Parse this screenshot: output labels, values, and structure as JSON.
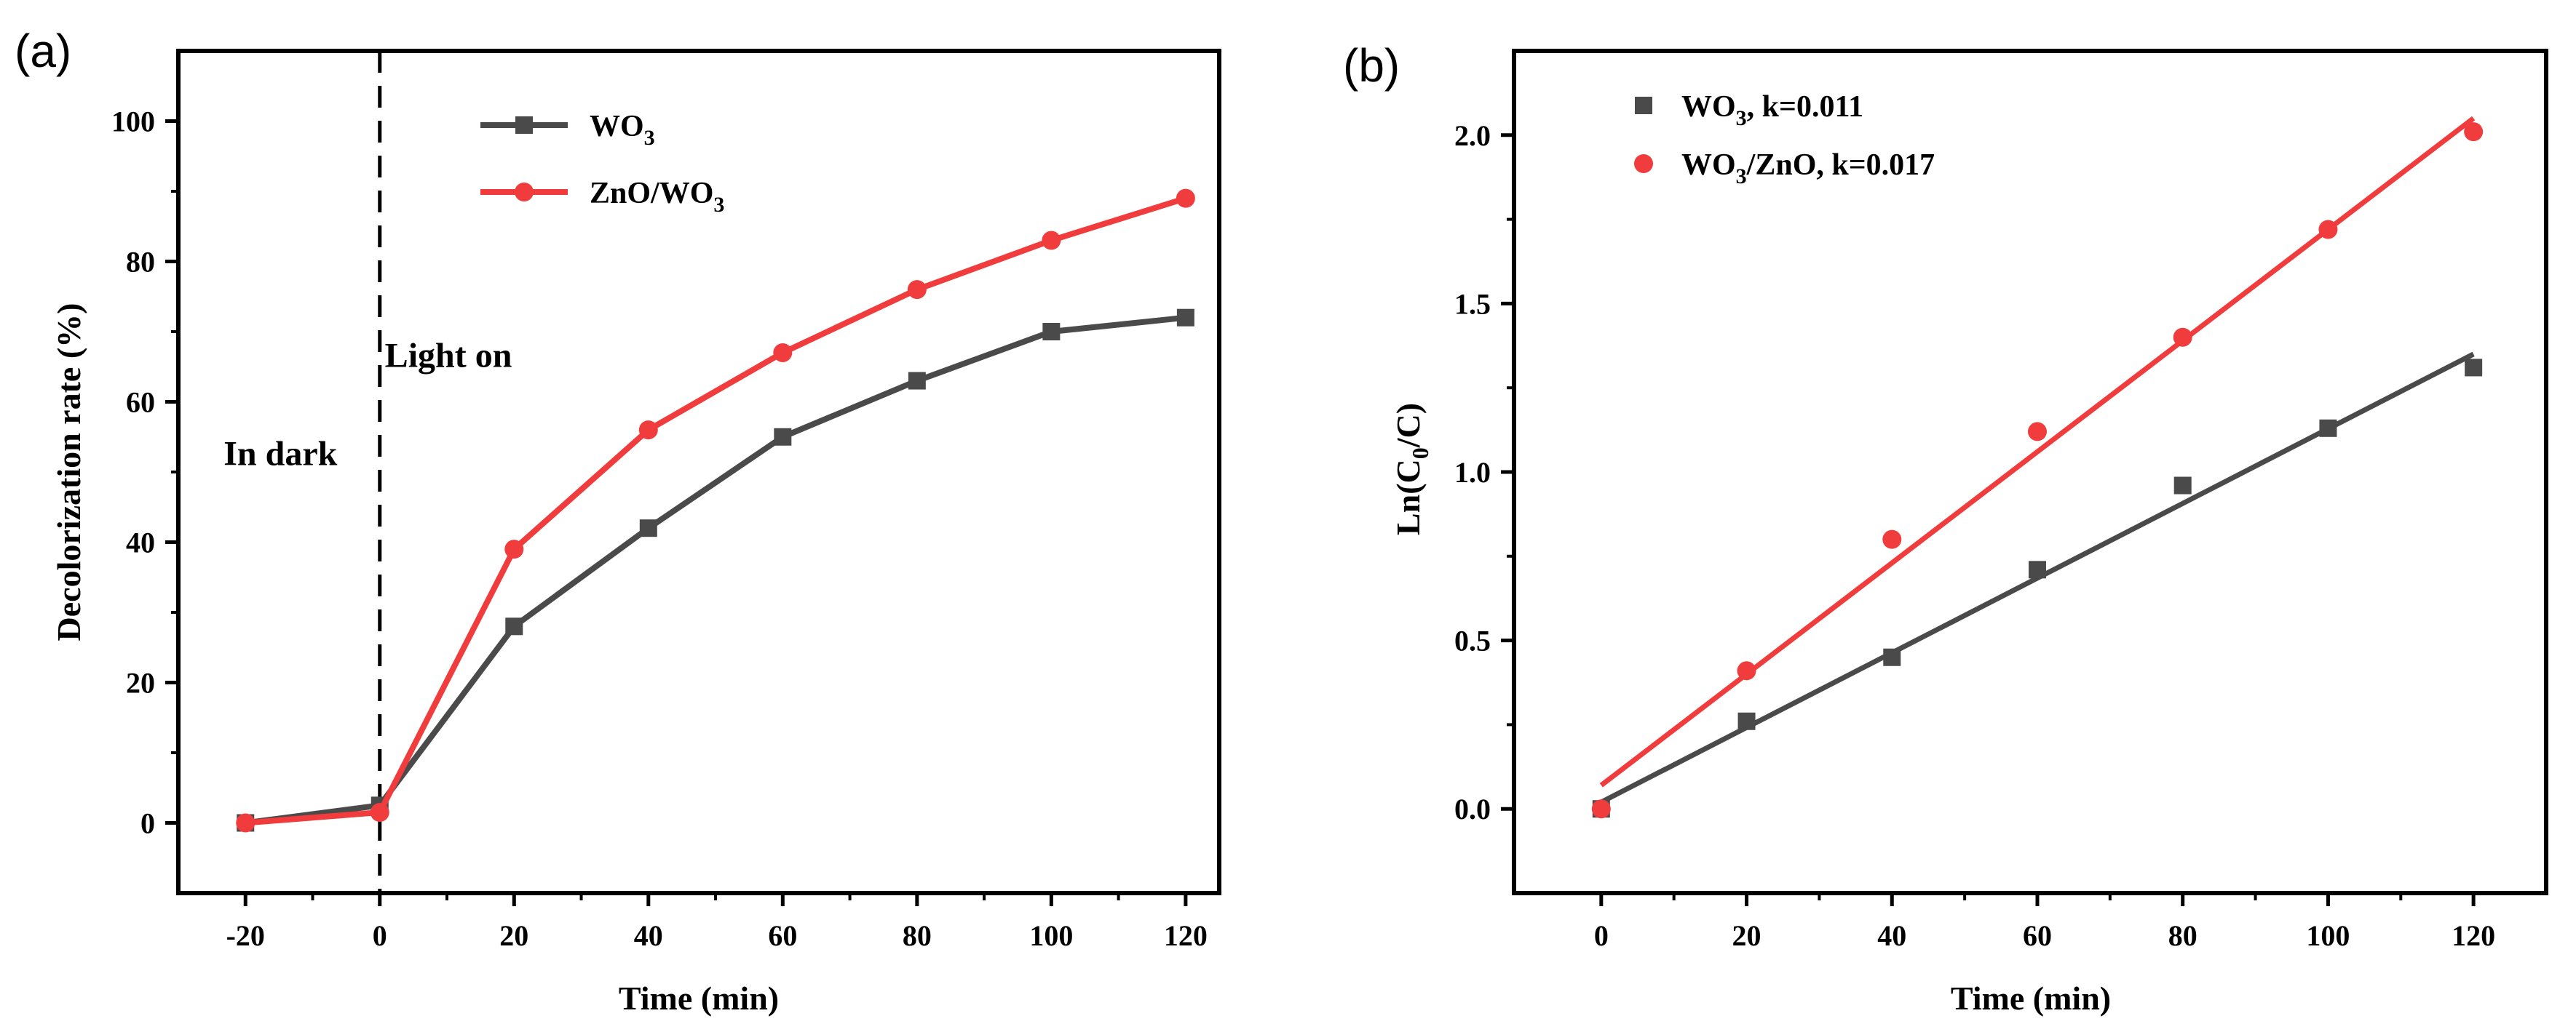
{
  "chart_data": [
    {
      "panel_label": "(a)",
      "type": "line",
      "xlabel": "Time (min)",
      "ylabel": "Decolorization rate (%)",
      "xlim": [
        -30,
        125
      ],
      "ylim": [
        -10,
        110
      ],
      "x_ticks": [
        -20,
        0,
        20,
        40,
        60,
        80,
        100,
        120
      ],
      "y_ticks": [
        0,
        20,
        40,
        60,
        80,
        100
      ],
      "x_tick_labels": [
        "-20",
        "0",
        "20",
        "40",
        "60",
        "80",
        "100",
        "120"
      ],
      "y_tick_labels": [
        "0",
        "20",
        "40",
        "60",
        "80",
        "100"
      ],
      "vline": {
        "x": 0,
        "style": "dashed"
      },
      "annotations": [
        {
          "text": "In dark",
          "x": -20,
          "y": 51
        },
        {
          "text": "Light on",
          "x": 4,
          "y": 65
        }
      ],
      "legend_position": "top-center",
      "series": [
        {
          "name": "WO",
          "sub": "3",
          "suffix": "",
          "color": "#4a4a4a",
          "marker": "square",
          "x": [
            -20,
            0,
            20,
            40,
            60,
            80,
            100,
            120
          ],
          "values": [
            0,
            2.5,
            28,
            42,
            55,
            63,
            70,
            72
          ]
        },
        {
          "name": "ZnO/WO",
          "sub": "3",
          "suffix": "",
          "color": "#f03c3c",
          "marker": "circle",
          "x": [
            -20,
            0,
            20,
            40,
            60,
            80,
            100,
            120
          ],
          "values": [
            0,
            1.5,
            39,
            56,
            67,
            76,
            83,
            89
          ]
        }
      ]
    },
    {
      "panel_label": "(b)",
      "type": "scatter",
      "xlabel": "Time (min)",
      "ylabel_main": "Ln(C",
      "ylabel_sub": "0",
      "ylabel_tail": "/C)",
      "xlim": [
        -12,
        130
      ],
      "ylim": [
        -0.25,
        2.25
      ],
      "x_ticks": [
        0,
        20,
        40,
        60,
        80,
        100,
        120
      ],
      "y_ticks": [
        0.0,
        0.5,
        1.0,
        1.5,
        2.0
      ],
      "x_tick_labels": [
        "0",
        "20",
        "40",
        "60",
        "80",
        "100",
        "120"
      ],
      "y_tick_labels": [
        "0.0",
        "0.5",
        "1.0",
        "1.5",
        "2.0"
      ],
      "legend_position": "top-left",
      "series": [
        {
          "name": "WO",
          "sub": "3",
          "suffix": ", k=0.011",
          "color": "#4a4a4a",
          "marker": "square",
          "x": [
            0,
            20,
            40,
            60,
            80,
            100,
            120
          ],
          "values": [
            0,
            0.26,
            0.45,
            0.71,
            0.96,
            1.13,
            1.31
          ],
          "fit": {
            "x": [
              0,
              120
            ],
            "y": [
              0.02,
              1.35
            ]
          }
        },
        {
          "name": "WO",
          "sub": "3",
          "suffix": "/ZnO, k=0.017",
          "color": "#f03c3c",
          "marker": "circle",
          "x": [
            0,
            20,
            40,
            60,
            80,
            100,
            120
          ],
          "values": [
            0,
            0.41,
            0.8,
            1.12,
            1.4,
            1.72,
            2.01
          ],
          "fit": {
            "x": [
              0,
              120
            ],
            "y": [
              0.07,
              2.05
            ]
          }
        }
      ]
    }
  ]
}
